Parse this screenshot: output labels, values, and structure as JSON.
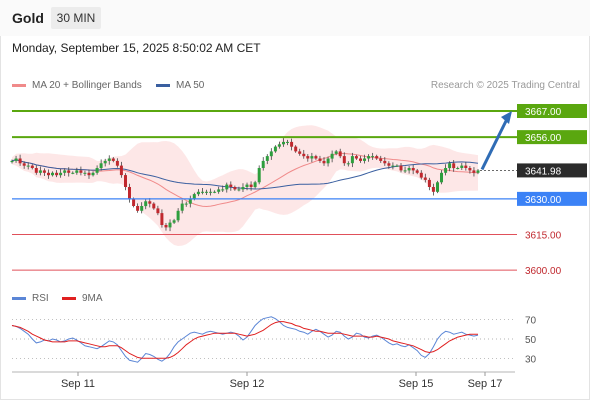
{
  "header": {
    "symbol": "Gold",
    "timeframe": "30 MIN"
  },
  "timestamp": "Monday, September 15, 2025 8:50:02 AM CET",
  "legend": {
    "price_items": [
      {
        "label": "MA 20 + Bollinger Bands",
        "color": "#f08a8a"
      },
      {
        "label": "MA 50",
        "color": "#3a5fa0"
      }
    ],
    "rsi_items": [
      {
        "label": "RSI",
        "color": "#5b86d6"
      },
      {
        "label": "9MA",
        "color": "#e02020"
      }
    ]
  },
  "credit": "Research © 2025 Trading Central",
  "colors": {
    "resistance": "#5aa70f",
    "current": "#2b2b2b",
    "pivot": "#3b82f6",
    "support": "#e0505a",
    "arrow": "#2f6cb5"
  },
  "chart_data": [
    {
      "type": "candlestick",
      "x_labels": [
        "Sep 11",
        "Sep 12",
        "Sep 15",
        "Sep 17"
      ],
      "ylim": [
        3595,
        3675
      ],
      "current_price": "3641.98",
      "levels": [
        {
          "value": 3667.0,
          "label": "3667.00",
          "kind": "resistance"
        },
        {
          "value": 3656.0,
          "label": "3656.00",
          "kind": "resistance"
        },
        {
          "value": 3630.0,
          "label": "3630.00",
          "kind": "pivot"
        },
        {
          "value": 3615.0,
          "label": "3615.00",
          "kind": "support"
        },
        {
          "value": 3600.0,
          "label": "3600.00",
          "kind": "support"
        }
      ],
      "forecast_target": 3667.0,
      "close": [
        3646,
        3647,
        3645,
        3644,
        3644,
        3643,
        3641,
        3642,
        3641,
        3640,
        3641,
        3640,
        3641,
        3642,
        3641,
        3641,
        3642,
        3641,
        3641,
        3640,
        3641,
        3643,
        3645,
        3646,
        3647,
        3646,
        3644,
        3640,
        3635,
        3630,
        3627,
        3625,
        3627,
        3629,
        3628,
        3626,
        3624,
        3619,
        3618,
        3620,
        3621,
        3625,
        3628,
        3628,
        3630,
        3632,
        3633,
        3633,
        3633,
        3633,
        3633,
        3634,
        3634,
        3636,
        3635,
        3634,
        3634,
        3635,
        3636,
        3635,
        3637,
        3643,
        3646,
        3648,
        3650,
        3652,
        3653,
        3654,
        3654,
        3652,
        3650,
        3649,
        3648,
        3647,
        3648,
        3647,
        3646,
        3645,
        3647,
        3649,
        3650,
        3648,
        3645,
        3645,
        3648,
        3647,
        3646,
        3647,
        3648,
        3648,
        3647,
        3646,
        3645,
        3644,
        3644,
        3644,
        3642,
        3642,
        3643,
        3642,
        3641,
        3639,
        3638,
        3635,
        3633,
        3637,
        3641,
        3643,
        3645,
        3643,
        3643,
        3644,
        3643,
        3642,
        3641,
        3642
      ],
      "rsi": {
        "ticks": [
          70,
          50,
          30
        ],
        "ylim": [
          20,
          80
        ],
        "rsi": [
          64,
          63,
          61,
          58,
          55,
          50,
          46,
          47,
          49,
          48,
          50,
          49,
          47,
          48,
          50,
          51,
          49,
          46,
          43,
          42,
          41,
          40,
          42,
          45,
          48,
          47,
          44,
          38,
          32,
          28,
          27,
          26,
          30,
          35,
          34,
          32,
          29,
          27,
          30,
          35,
          42,
          47,
          50,
          53,
          56,
          57,
          56,
          55,
          57,
          58,
          57,
          56,
          55,
          56,
          57,
          56,
          53,
          49,
          52,
          58,
          64,
          68,
          71,
          72,
          73,
          71,
          68,
          64,
          62,
          61,
          60,
          58,
          57,
          55,
          58,
          60,
          58,
          55,
          52,
          54,
          58,
          57,
          53,
          50,
          52,
          56,
          55,
          52,
          51,
          53,
          54,
          52,
          49,
          46,
          44,
          45,
          43,
          42,
          44,
          41,
          38,
          33,
          31,
          35,
          42,
          50,
          55,
          58,
          57,
          55,
          56,
          57,
          55,
          54,
          53,
          54
        ],
        "ma9": [
          64,
          63,
          62,
          60,
          58,
          55,
          53,
          51,
          49,
          48,
          47,
          47,
          47,
          47,
          48,
          48,
          48,
          47,
          46,
          45,
          44,
          43,
          42,
          42,
          43,
          43,
          43,
          41,
          38,
          35,
          33,
          31,
          30,
          30,
          30,
          30,
          30,
          30,
          30,
          31,
          33,
          36,
          40,
          44,
          47,
          50,
          52,
          53,
          54,
          55,
          56,
          56,
          56,
          56,
          56,
          56,
          55,
          54,
          53,
          54,
          55,
          57,
          59,
          62,
          65,
          67,
          68,
          68,
          67,
          66,
          64,
          63,
          61,
          60,
          59,
          58,
          58,
          57,
          56,
          56,
          56,
          56,
          55,
          54,
          53,
          53,
          53,
          53,
          52,
          52,
          53,
          52,
          51,
          50,
          48,
          47,
          46,
          45,
          44,
          43,
          41,
          39,
          37,
          36,
          37,
          39,
          42,
          45,
          48,
          50,
          52,
          53,
          54,
          55,
          55,
          55
        ]
      }
    }
  ]
}
